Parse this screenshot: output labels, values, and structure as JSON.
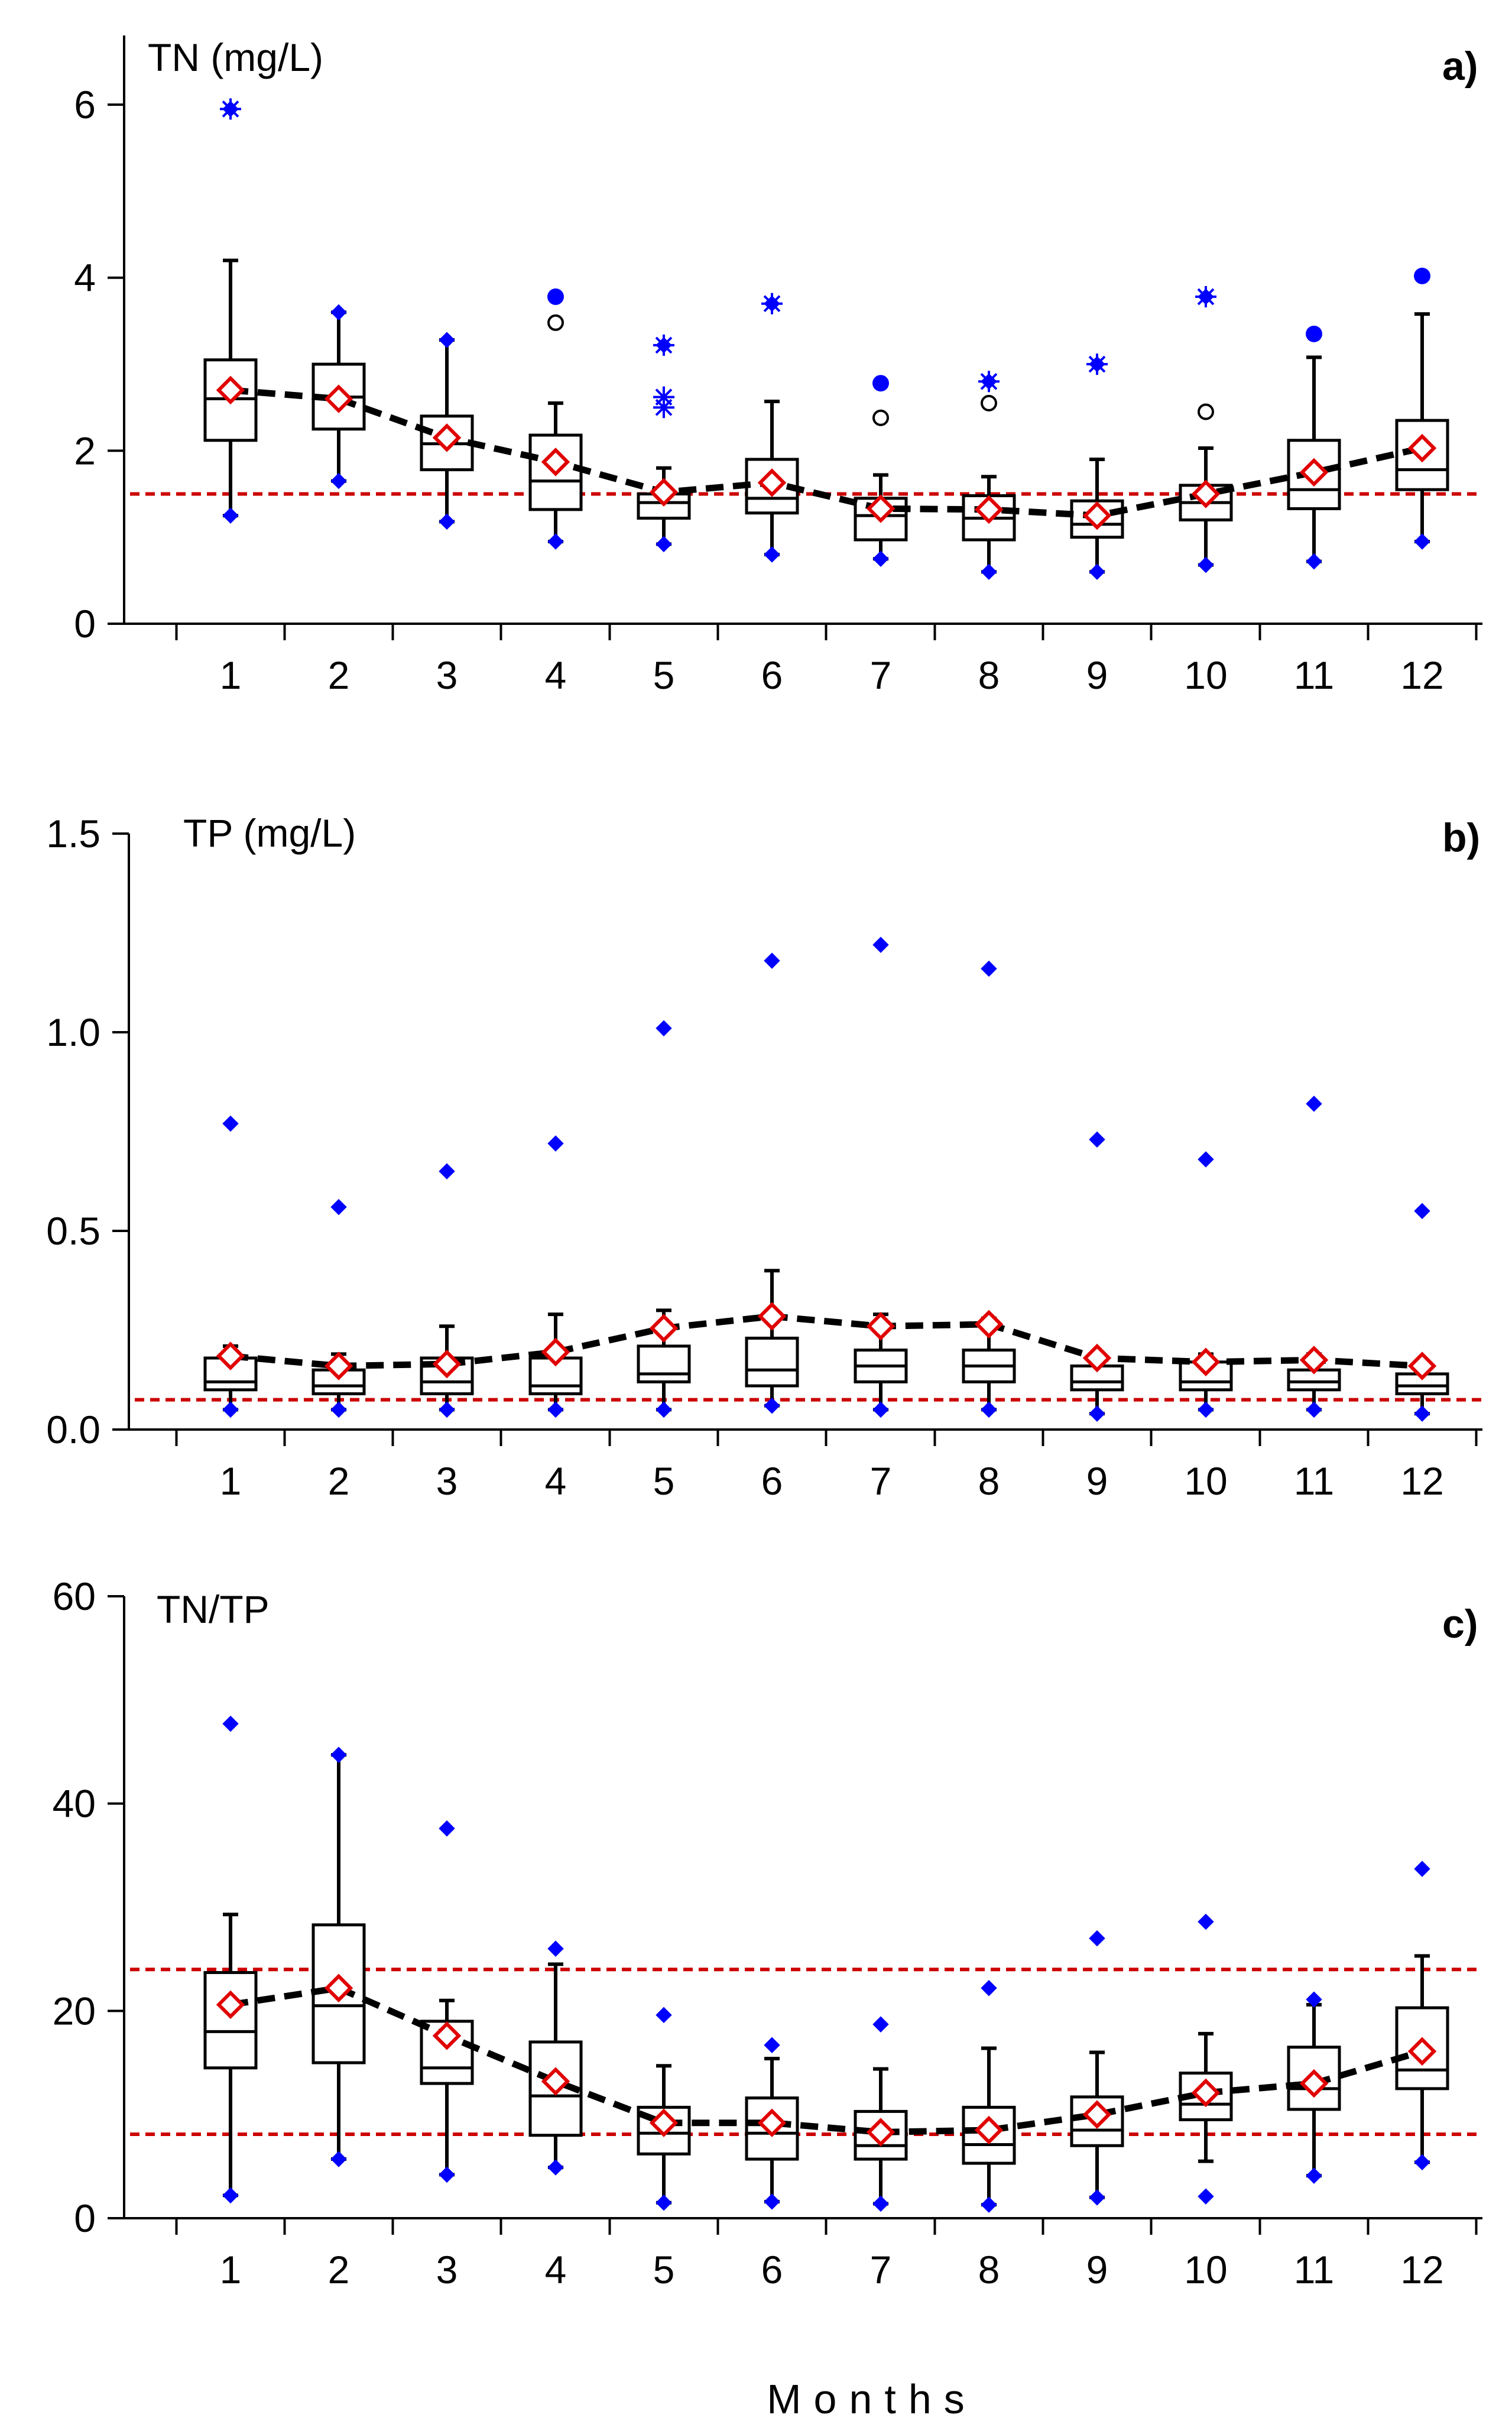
{
  "figure": {
    "xlabel": "Months",
    "colors": {
      "box": "#000000",
      "whisker": "#000000",
      "minmax_marker": "#0000ff",
      "mean_marker": "#e00000",
      "mean_line": "#000000",
      "reference_line": "#cc0000",
      "outlier": "#0000ff"
    }
  },
  "chart_data": [
    {
      "type": "box",
      "panel": "a)",
      "title": "TN (mg/L)",
      "xlabel": "Months",
      "ylim": [
        0,
        6.8
      ],
      "yticks": [
        0,
        2,
        4,
        6
      ],
      "ytick_labels": [
        "0",
        "2",
        "4",
        "6"
      ],
      "categories": [
        "1",
        "2",
        "3",
        "4",
        "5",
        "6",
        "7",
        "8",
        "9",
        "10",
        "11",
        "12"
      ],
      "q1": [
        2.12,
        2.25,
        1.78,
        1.32,
        1.22,
        1.28,
        0.97,
        0.97,
        1.0,
        1.2,
        1.33,
        1.55
      ],
      "median": [
        2.6,
        2.62,
        2.08,
        1.65,
        1.4,
        1.45,
        1.25,
        1.22,
        1.15,
        1.4,
        1.55,
        1.78
      ],
      "q3": [
        3.05,
        3.0,
        2.4,
        2.18,
        1.5,
        1.9,
        1.45,
        1.48,
        1.42,
        1.6,
        2.12,
        2.35
      ],
      "whisker_low": [
        1.25,
        1.65,
        1.18,
        0.95,
        0.92,
        0.8,
        0.75,
        0.6,
        0.6,
        0.68,
        0.72,
        0.95
      ],
      "whisker_high": [
        4.2,
        3.6,
        3.28,
        2.55,
        1.8,
        2.57,
        1.72,
        1.7,
        1.9,
        2.03,
        3.08,
        3.58
      ],
      "min": [
        1.25,
        1.65,
        1.18,
        0.95,
        0.92,
        0.8,
        0.75,
        0.6,
        0.6,
        0.68,
        0.72,
        0.95
      ],
      "max": [
        5.95,
        3.6,
        3.28,
        3.78,
        3.22,
        3.7,
        2.78,
        2.8,
        3.0,
        3.78,
        3.35,
        4.02
      ],
      "mean": [
        2.7,
        2.6,
        2.15,
        1.87,
        1.52,
        1.63,
        1.33,
        1.32,
        1.25,
        1.5,
        1.75,
        2.03
      ],
      "outliers": [
        {
          "x": "1",
          "y": 5.95,
          "marker": "star"
        },
        {
          "x": "4",
          "y": 3.78,
          "marker": "filled-circle"
        },
        {
          "x": "4",
          "y": 3.48,
          "marker": "open-circle"
        },
        {
          "x": "5",
          "y": 3.22,
          "marker": "star"
        },
        {
          "x": "5",
          "y": 2.62,
          "marker": "star"
        },
        {
          "x": "5",
          "y": 2.5,
          "marker": "star"
        },
        {
          "x": "6",
          "y": 3.7,
          "marker": "star"
        },
        {
          "x": "7",
          "y": 2.78,
          "marker": "filled-circle"
        },
        {
          "x": "7",
          "y": 2.38,
          "marker": "open-circle"
        },
        {
          "x": "8",
          "y": 2.8,
          "marker": "star"
        },
        {
          "x": "8",
          "y": 2.55,
          "marker": "open-circle"
        },
        {
          "x": "9",
          "y": 3.0,
          "marker": "star"
        },
        {
          "x": "10",
          "y": 3.78,
          "marker": "star"
        },
        {
          "x": "10",
          "y": 2.45,
          "marker": "open-circle"
        },
        {
          "x": "11",
          "y": 3.35,
          "marker": "filled-circle"
        },
        {
          "x": "12",
          "y": 4.02,
          "marker": "filled-circle"
        }
      ],
      "reference_lines": [
        1.5
      ]
    },
    {
      "type": "box",
      "panel": "b)",
      "title": "TP (mg/L)",
      "xlabel": "Months",
      "ylim": [
        0,
        1.5
      ],
      "yticks": [
        0,
        0.5,
        1.0,
        1.5
      ],
      "ytick_labels": [
        "0.0",
        "0.5",
        "1.0",
        "1.5"
      ],
      "categories": [
        "1",
        "2",
        "3",
        "4",
        "5",
        "6",
        "7",
        "8",
        "9",
        "10",
        "11",
        "12"
      ],
      "q1": [
        0.1,
        0.09,
        0.09,
        0.09,
        0.12,
        0.11,
        0.12,
        0.12,
        0.1,
        0.1,
        0.1,
        0.09
      ],
      "median": [
        0.12,
        0.11,
        0.12,
        0.11,
        0.14,
        0.15,
        0.16,
        0.16,
        0.12,
        0.12,
        0.12,
        0.11
      ],
      "q3": [
        0.18,
        0.15,
        0.18,
        0.18,
        0.21,
        0.23,
        0.2,
        0.2,
        0.16,
        0.17,
        0.15,
        0.14
      ],
      "whisker_low": [
        0.05,
        0.05,
        0.05,
        0.05,
        0.05,
        0.06,
        0.05,
        0.05,
        0.04,
        0.05,
        0.05,
        0.04
      ],
      "whisker_high": [
        0.21,
        0.19,
        0.26,
        0.29,
        0.3,
        0.4,
        0.29,
        0.28,
        0.19,
        0.19,
        0.19,
        0.16
      ],
      "min": [
        0.05,
        0.05,
        0.05,
        0.05,
        0.05,
        0.06,
        0.05,
        0.05,
        0.04,
        0.05,
        0.05,
        0.04
      ],
      "max": [
        0.77,
        0.56,
        0.65,
        0.72,
        1.01,
        1.18,
        1.22,
        1.16,
        0.73,
        0.68,
        0.82,
        0.55
      ],
      "mean": [
        0.185,
        0.16,
        0.165,
        0.195,
        0.255,
        0.285,
        0.26,
        0.265,
        0.18,
        0.17,
        0.175,
        0.16
      ],
      "outliers": [],
      "reference_lines": [
        0.075
      ]
    },
    {
      "type": "box",
      "panel": "c)",
      "title": "TN/TP",
      "xlabel": "Months",
      "ylim": [
        0,
        60
      ],
      "yticks": [
        0,
        20,
        40,
        60
      ],
      "ytick_labels": [
        "0",
        "20",
        "40",
        "60"
      ],
      "categories": [
        "1",
        "2",
        "3",
        "4",
        "5",
        "6",
        "7",
        "8",
        "9",
        "10",
        "11",
        "12"
      ],
      "q1": [
        14.5,
        15.0,
        13.0,
        8.0,
        6.2,
        5.7,
        5.7,
        5.3,
        7.0,
        9.5,
        10.5,
        12.5
      ],
      "median": [
        18.0,
        20.5,
        14.5,
        11.8,
        8.2,
        8.2,
        7.0,
        7.1,
        8.5,
        11.0,
        12.5,
        14.3
      ],
      "q3": [
        23.7,
        28.3,
        19.0,
        17.0,
        10.7,
        11.6,
        10.3,
        10.7,
        11.7,
        14.0,
        16.5,
        20.3
      ],
      "whisker_low": [
        2.2,
        5.7,
        4.2,
        4.9,
        1.5,
        1.6,
        1.4,
        1.3,
        2.0,
        5.5,
        4.1,
        5.4
      ],
      "whisker_high": [
        29.3,
        44.7,
        21.0,
        24.5,
        14.7,
        15.4,
        14.4,
        16.4,
        16.0,
        17.8,
        20.6,
        25.3
      ],
      "min": [
        2.2,
        5.7,
        4.2,
        4.9,
        1.5,
        1.6,
        1.4,
        1.3,
        2.0,
        2.1,
        4.1,
        5.4
      ],
      "max": [
        47.7,
        44.7,
        37.6,
        26.0,
        19.6,
        16.7,
        18.7,
        22.2,
        27.0,
        28.6,
        21.1,
        33.7
      ],
      "mean": [
        20.6,
        22.2,
        17.6,
        13.2,
        9.2,
        9.2,
        8.3,
        8.5,
        10.0,
        12.1,
        13.0,
        16.1
      ],
      "outliers": [],
      "reference_lines": [
        8.1,
        24.0
      ]
    }
  ]
}
